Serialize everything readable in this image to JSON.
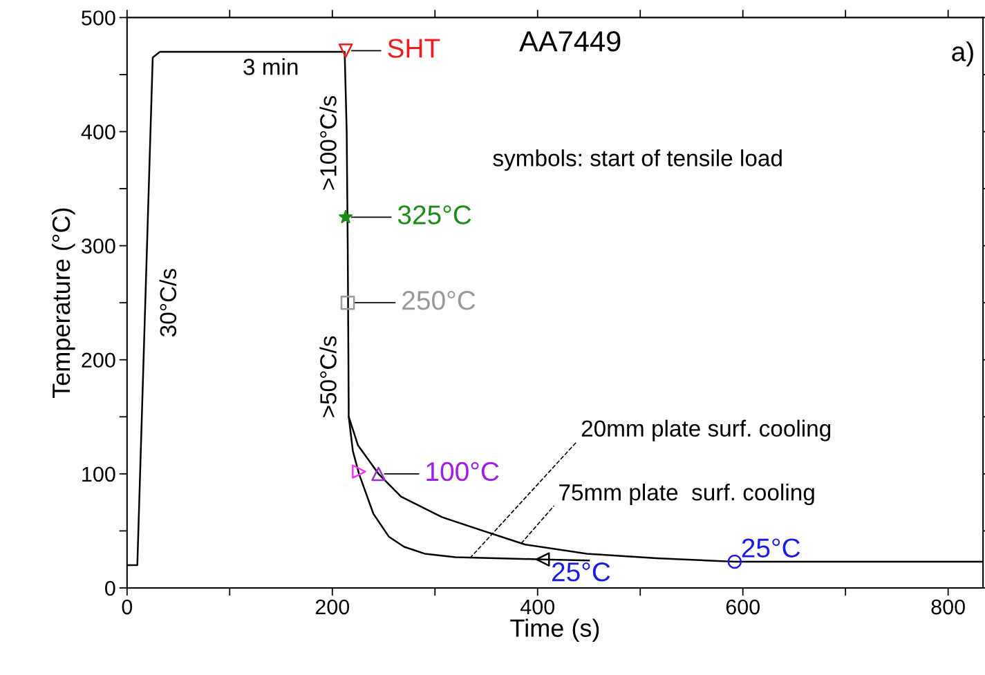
{
  "chart_data": {
    "type": "line",
    "xlabel": "Time (s)",
    "ylabel": "Temperature (°C)",
    "xlim": [
      0,
      834
    ],
    "ylim": [
      0,
      500
    ],
    "xticks": [
      0,
      {
        "value": 100,
        "label": null
      },
      200,
      {
        "value": 300,
        "label": null
      },
      400,
      {
        "value": 500,
        "label": null
      },
      600,
      {
        "value": 700,
        "label": null
      },
      800
    ],
    "yticks": [
      0,
      {
        "value": 50,
        "label": null
      },
      100,
      {
        "value": 150,
        "label": null
      },
      200,
      {
        "value": 250,
        "label": null
      },
      300,
      {
        "value": 350,
        "label": null
      },
      400,
      {
        "value": 450,
        "label": null
      },
      500
    ],
    "grid": false,
    "legend": false,
    "series": [
      {
        "color": "#000000",
        "x": [
          0,
          10,
          25,
          32,
          212,
          214,
          215,
          216,
          225,
          245,
          267,
          307,
          347,
          388,
          448,
          516,
          592,
          834
        ],
        "values": [
          20,
          20,
          465,
          470,
          470,
          400,
          300,
          150,
          125,
          100,
          80,
          62,
          50,
          38,
          30,
          26,
          23,
          23
        ]
      },
      {
        "color": "#000000",
        "x": [
          216,
          220,
          226,
          240,
          255,
          270,
          290,
          320,
          360,
          405,
          450
        ],
        "values": [
          150,
          120,
          100,
          65,
          45,
          36,
          30,
          27,
          26,
          25,
          24
        ]
      },
      {
        "type": "scatter",
        "marker": "triangle-down",
        "color": "#ee1c1c",
        "x": [
          213
        ],
        "values": [
          471
        ]
      },
      {
        "type": "scatter",
        "marker": "star",
        "color": "#1a8c1a",
        "x": [
          213
        ],
        "values": [
          325
        ]
      },
      {
        "type": "scatter",
        "marker": "square",
        "color": "#999999",
        "x": [
          215
        ],
        "values": [
          250
        ]
      },
      {
        "type": "scatter",
        "marker": "triangle-right",
        "color": "#ff33ff",
        "x": [
          226
        ],
        "values": [
          102
        ]
      },
      {
        "type": "scatter",
        "marker": "triangle",
        "color": "#9932cc",
        "x": [
          245
        ],
        "values": [
          100
        ]
      },
      {
        "type": "scatter",
        "marker": "triangle-left",
        "color": "#000000",
        "x": [
          405
        ],
        "values": [
          25
        ]
      },
      {
        "type": "scatter",
        "marker": "circle",
        "color": "#1a1ae6",
        "x": [
          592
        ],
        "values": [
          23
        ]
      }
    ],
    "annotations": [
      {
        "text": "SHT",
        "x": 213,
        "y": 471
      },
      "AA7449",
      "a)",
      "3 min",
      "30°C/s",
      ">100°C/s",
      ">50°C/s",
      "symbols: start of tensile load",
      {
        "text": "325°C",
        "x": 213,
        "y": 325
      },
      {
        "text": "250°C",
        "x": 215,
        "y": 250
      },
      {
        "text": "100°C",
        "x": 245,
        "y": 100
      },
      {
        "text": "25°C",
        "x": 405,
        "y": 25
      },
      {
        "text": "25°C",
        "x": 592,
        "y": 23
      },
      {
        "text": "20mm plate surf. cooling",
        "x": 334,
        "y": 26
      },
      {
        "text": "75mm plate  surf. cooling",
        "x": 384,
        "y": 39
      }
    ]
  }
}
